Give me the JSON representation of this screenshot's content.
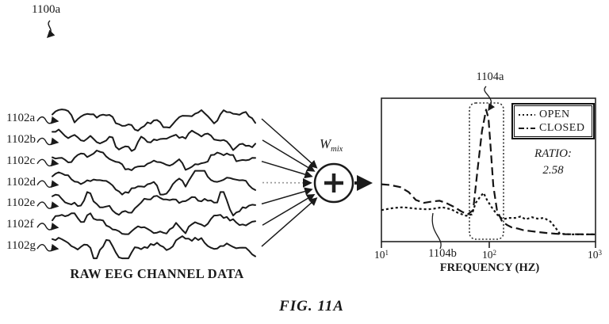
{
  "figure": {
    "ref_label": "1100a",
    "caption": "FIG. 11A",
    "left_panel": {
      "caption": "RAW EEG CHANNEL DATA",
      "channels": [
        "1102a",
        "1102b",
        "1102c",
        "1102d",
        "1102e",
        "1102f",
        "1102g"
      ]
    },
    "mixer": {
      "weight_symbol": "W",
      "weight_subscript": "mix",
      "operator": "+"
    },
    "plot": {
      "peak_callout": "1104a",
      "open_curve_callout": "1104b",
      "legend": [
        {
          "label": "OPEN"
        },
        {
          "label": "CLOSED"
        }
      ],
      "ratio_label": "RATIO:",
      "ratio_value": "2.58",
      "x_axis": {
        "label": "FREQUENCY (HZ)",
        "ticks": [
          {
            "base": "10",
            "exp": "1"
          },
          {
            "base": "10",
            "exp": "2"
          },
          {
            "base": "10",
            "exp": "3"
          }
        ]
      }
    },
    "colors": {
      "ink": "#1a1a1a",
      "muted_arrow": "#999999"
    }
  },
  "chart_data": {
    "type": "line",
    "title": "",
    "xlabel": "FREQUENCY (HZ)",
    "ylabel": "",
    "x_scale": "log",
    "xlim": [
      10,
      1000
    ],
    "x_ticks": [
      10,
      100,
      1000
    ],
    "ylim": [
      0,
      1
    ],
    "grid": false,
    "legend_position": "top-right",
    "annotations": [
      {
        "text": "RATIO: 2.58"
      },
      {
        "text": "1104a",
        "target": "CLOSED curve peak"
      },
      {
        "text": "1104b",
        "target": "OPEN curve"
      },
      {
        "type": "highlight-box",
        "style": "dotted",
        "x_range_hz": [
          60,
          135
        ]
      }
    ],
    "series": [
      {
        "name": "OPEN",
        "line_style": "dotted",
        "points": [
          [
            10,
            0.22
          ],
          [
            13,
            0.235
          ],
          [
            16,
            0.24
          ],
          [
            21,
            0.23
          ],
          [
            27,
            0.225
          ],
          [
            31,
            0.23
          ],
          [
            37,
            0.24
          ],
          [
            45,
            0.225
          ],
          [
            52,
            0.2
          ],
          [
            62,
            0.18
          ],
          [
            70,
            0.19
          ],
          [
            76,
            0.27
          ],
          [
            83,
            0.31
          ],
          [
            90,
            0.34
          ],
          [
            97,
            0.29
          ],
          [
            107,
            0.24
          ],
          [
            120,
            0.19
          ],
          [
            136,
            0.155
          ],
          [
            155,
            0.165
          ],
          [
            178,
            0.165
          ],
          [
            200,
            0.175
          ],
          [
            223,
            0.155
          ],
          [
            255,
            0.17
          ],
          [
            287,
            0.16
          ],
          [
            330,
            0.165
          ],
          [
            379,
            0.14
          ],
          [
            420,
            0.1
          ],
          [
            464,
            0.055
          ],
          [
            600,
            0.05
          ],
          [
            1000,
            0.05
          ]
        ]
      },
      {
        "name": "CLOSED",
        "line_style": "dashed",
        "points": [
          [
            10,
            0.4
          ],
          [
            12,
            0.395
          ],
          [
            15,
            0.38
          ],
          [
            18,
            0.345
          ],
          [
            21,
            0.29
          ],
          [
            25,
            0.27
          ],
          [
            30,
            0.28
          ],
          [
            35,
            0.285
          ],
          [
            40,
            0.27
          ],
          [
            47,
            0.245
          ],
          [
            56,
            0.21
          ],
          [
            64,
            0.19
          ],
          [
            72,
            0.22
          ],
          [
            79,
            0.5
          ],
          [
            87,
            0.77
          ],
          [
            95,
            0.92
          ],
          [
            100,
            0.86
          ],
          [
            104,
            0.69
          ],
          [
            111,
            0.39
          ],
          [
            120,
            0.22
          ],
          [
            134,
            0.14
          ],
          [
            150,
            0.115
          ],
          [
            164,
            0.1
          ],
          [
            190,
            0.09
          ],
          [
            211,
            0.08
          ],
          [
            250,
            0.073
          ],
          [
            297,
            0.066
          ],
          [
            350,
            0.06
          ],
          [
            419,
            0.055
          ],
          [
            500,
            0.052
          ],
          [
            1000,
            0.05
          ]
        ]
      }
    ]
  }
}
